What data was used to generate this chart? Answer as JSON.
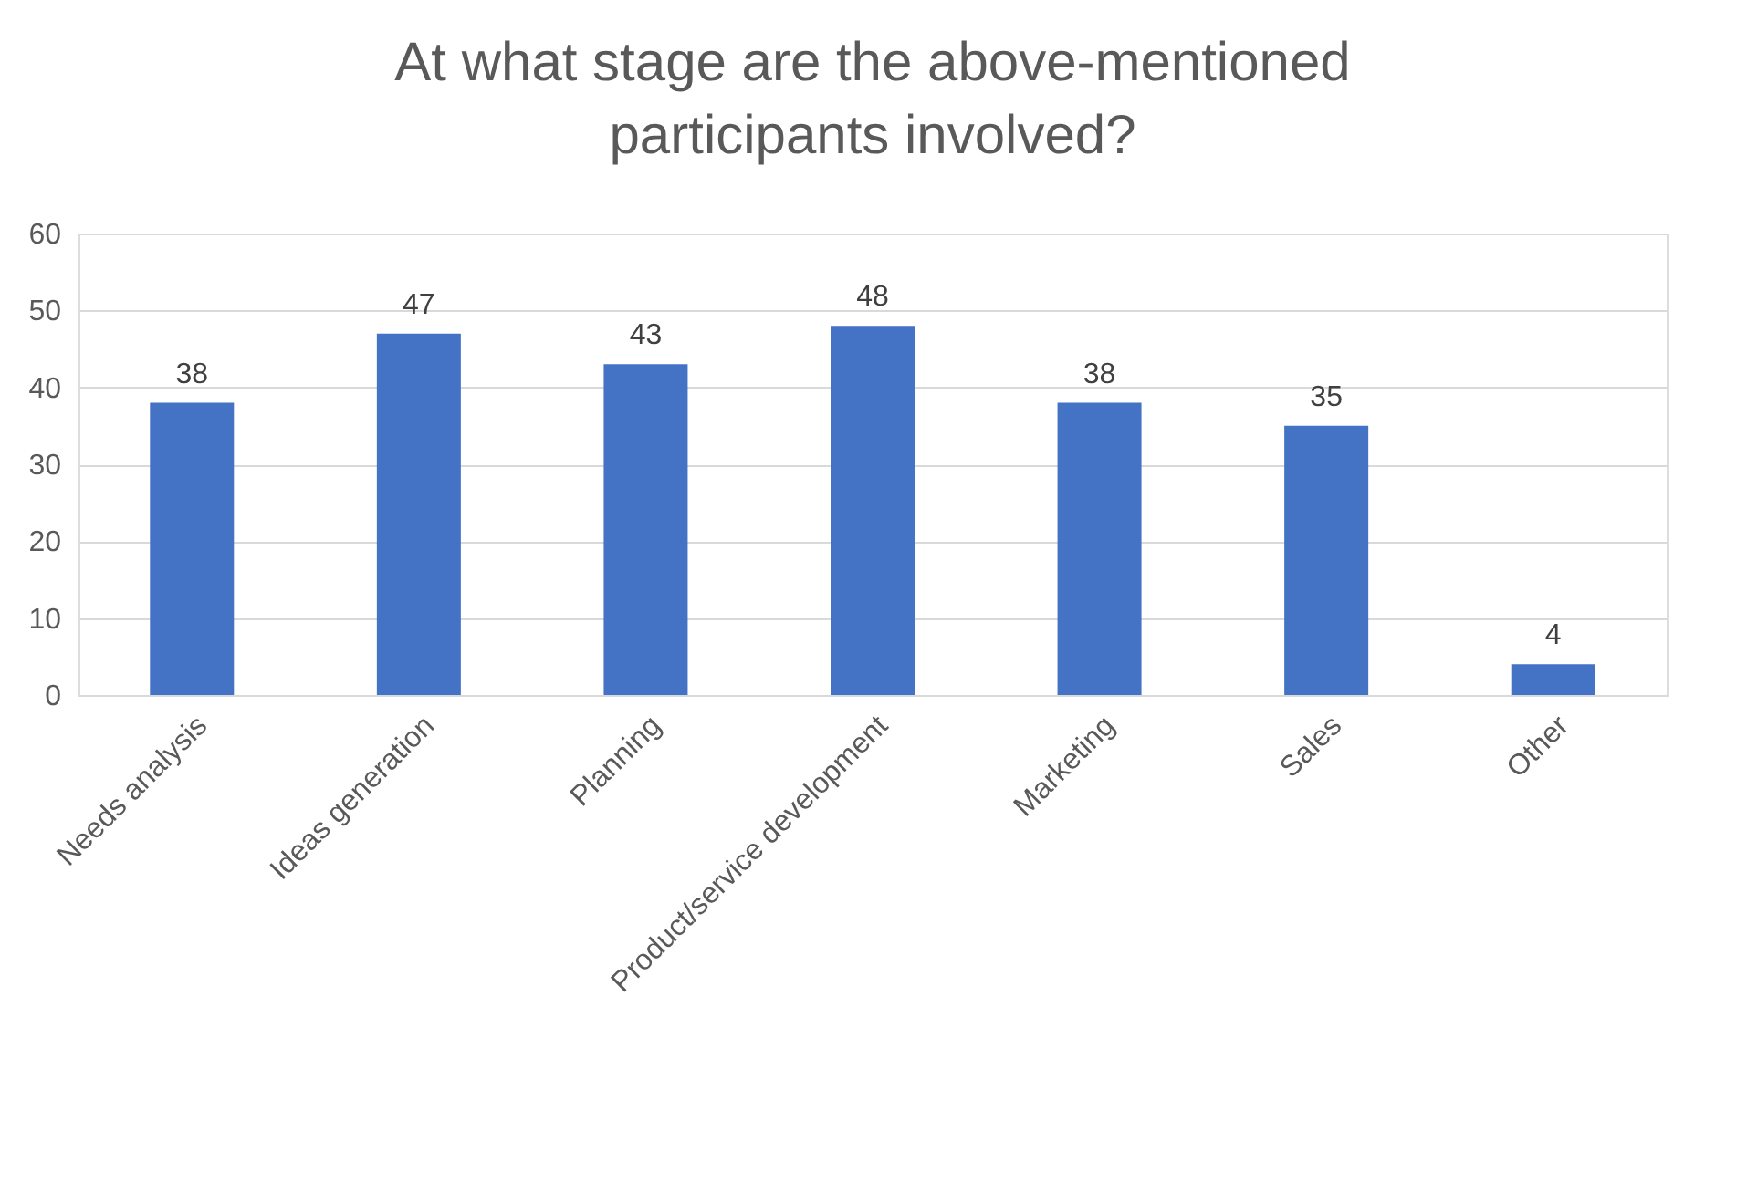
{
  "chart_data": {
    "type": "bar",
    "title": "At what stage are the above-mentioned participants involved?",
    "categories": [
      "Needs analysis",
      "Ideas generation",
      "Planning",
      "Product/service development",
      "Marketing",
      "Sales",
      "Other"
    ],
    "values": [
      38,
      47,
      43,
      48,
      38,
      35,
      4
    ],
    "color": "#4472c4",
    "ylim": [
      0,
      60
    ],
    "yticks": [
      0,
      10,
      20,
      30,
      40,
      50,
      60
    ],
    "grid": "y",
    "data_labels": true
  }
}
